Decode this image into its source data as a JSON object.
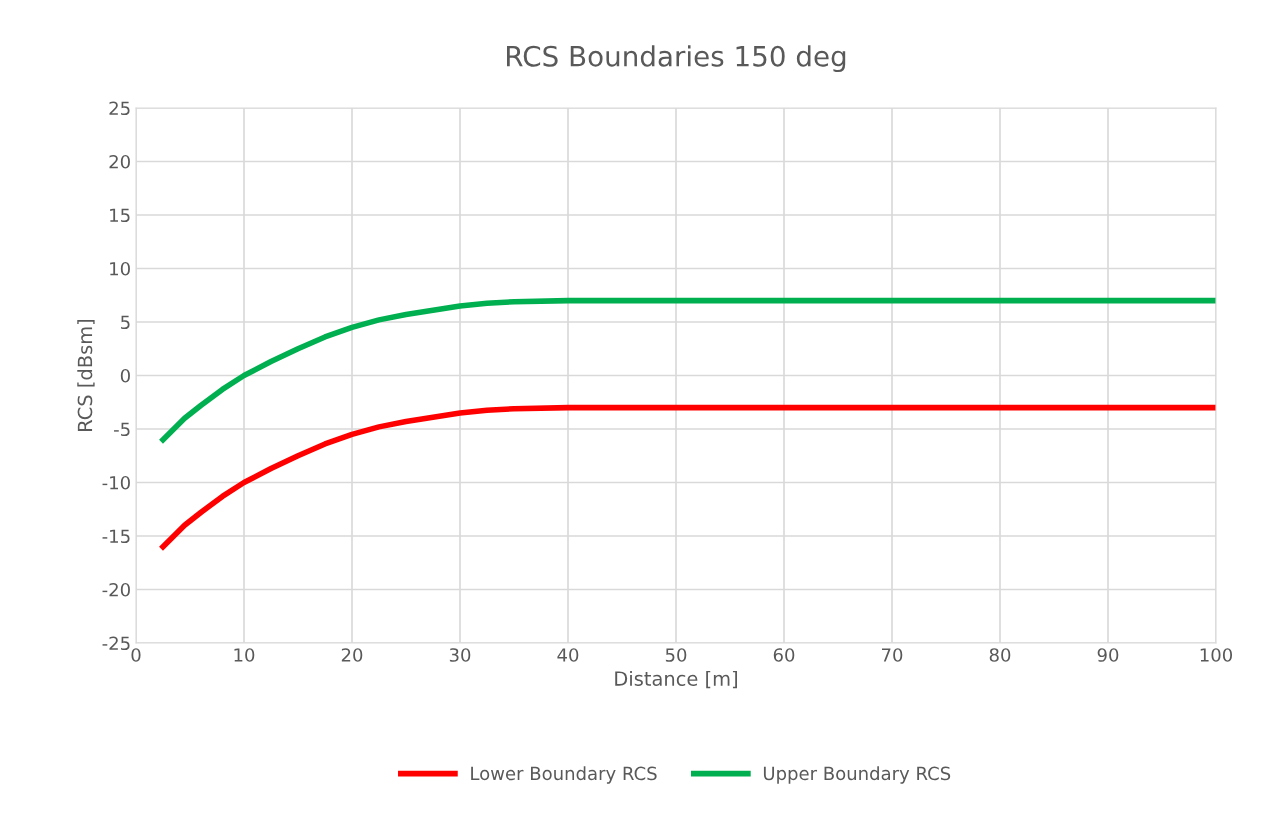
{
  "chart_data": {
    "type": "line",
    "title": "RCS Boundaries 150 deg",
    "xlabel": "Distance [m]",
    "ylabel": "RCS [dBsm]",
    "xlim": [
      0,
      100
    ],
    "xticks": [
      0,
      10,
      20,
      30,
      40,
      50,
      60,
      70,
      80,
      90,
      100
    ],
    "ylim": [
      -25,
      25
    ],
    "yticks": [
      -25,
      -20,
      -15,
      -10,
      -5,
      0,
      5,
      10,
      15,
      20,
      25
    ],
    "grid": true,
    "legend": "bottom",
    "marker": "none",
    "line_style": "solid",
    "series": [
      {
        "name": "Lower Boundary RCS",
        "color": "#ff0000",
        "x": [
          2.5,
          4.5,
          6,
          8,
          10,
          12.5,
          15,
          17.5,
          20,
          22.5,
          25,
          27.5,
          30,
          32.5,
          35,
          40,
          45,
          50,
          60,
          70,
          80,
          90,
          100
        ],
        "values": [
          -16,
          -14,
          -12.8,
          -11.3,
          -10,
          -8.7,
          -7.5,
          -6.4,
          -5.5,
          -4.8,
          -4.3,
          -3.9,
          -3.5,
          -3.25,
          -3.1,
          -3,
          -3,
          -3,
          -3,
          -3,
          -3,
          -3,
          -3
        ]
      },
      {
        "name": "Upper Boundary RCS",
        "color": "#00b050",
        "x": [
          2.5,
          4.5,
          6,
          8,
          10,
          12.5,
          15,
          17.5,
          20,
          22.5,
          25,
          27.5,
          30,
          32.5,
          35,
          40,
          45,
          50,
          60,
          70,
          80,
          90,
          100
        ],
        "values": [
          -6,
          -4,
          -2.8,
          -1.3,
          0,
          1.3,
          2.5,
          3.6,
          4.5,
          5.2,
          5.7,
          6.1,
          6.5,
          6.75,
          6.9,
          7,
          7,
          7,
          7,
          7,
          7,
          7,
          7
        ]
      }
    ]
  }
}
